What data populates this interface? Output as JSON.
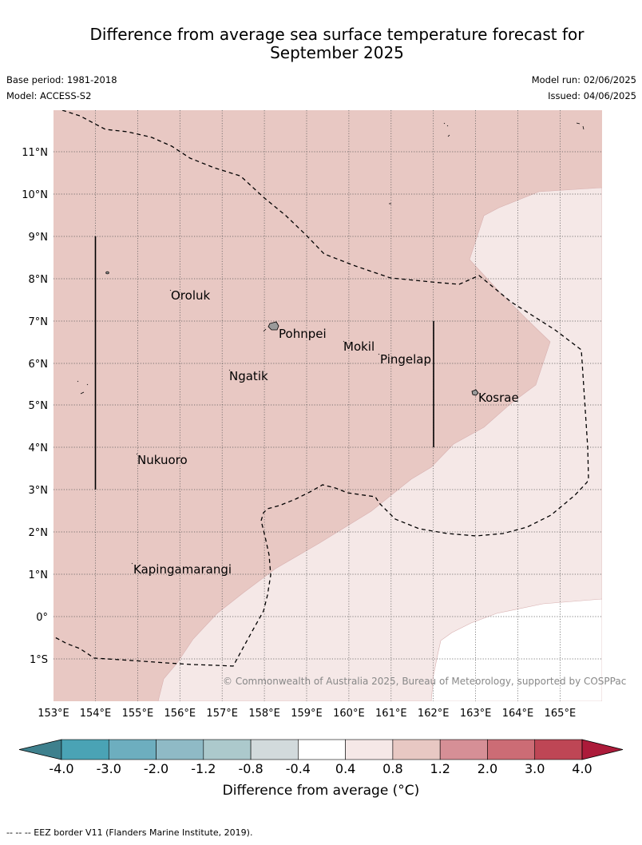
{
  "header": {
    "title_line1": "Difference from average sea surface temperature forecast for",
    "title_line2": "September 2025",
    "base_period": "Base period: 1981-2018",
    "model": "Model: ACCESS-S2",
    "model_run": "Model run: 02/06/2025",
    "issued": "Issued: 04/06/2025"
  },
  "map": {
    "lat_labels": [
      "11°N",
      "10°N",
      "9°N",
      "8°N",
      "7°N",
      "6°N",
      "5°N",
      "4°N",
      "3°N",
      "2°N",
      "1°N",
      "0°",
      "1°S"
    ],
    "lon_labels": [
      "153°E",
      "154°E",
      "155°E",
      "156°E",
      "157°E",
      "158°E",
      "159°E",
      "160°E",
      "161°E",
      "162°E",
      "163°E",
      "164°E",
      "165°E"
    ],
    "places": [
      "Oroluk",
      "Pohnpei",
      "Mokil",
      "Pingelap",
      "Ngatik",
      "Kosrae",
      "Nukuoro",
      "Kapingamarangi"
    ],
    "copyright": "© Commonwealth of Australia 2025, Bureau of Meteorology, supported by COSPPac",
    "colors": {
      "anomaly_0_8_to_1_2": "#e8c8c3",
      "anomaly_0_4_to_0_8": "#f5e8e7",
      "anomaly_neutral": "#ffffff"
    }
  },
  "colorbar": {
    "ticks": [
      "-4.0",
      "-3.0",
      "-2.0",
      "-1.2",
      "-0.8",
      "-0.4",
      "0.4",
      "0.8",
      "1.2",
      "2.0",
      "3.0",
      "4.0"
    ],
    "colors": [
      "#3e808d",
      "#4aa3b5",
      "#6daebf",
      "#8fbac6",
      "#acc9cc",
      "#d2dadc",
      "#ffffff",
      "#f5e8e7",
      "#e8c8c3",
      "#d68f96",
      "#cc6c75",
      "#be4655",
      "#ac1b3a"
    ],
    "label": "Difference from average (°C)"
  },
  "footnote": "-- -- -- EEZ border V11 (Flanders Marine Institute, 2019)."
}
